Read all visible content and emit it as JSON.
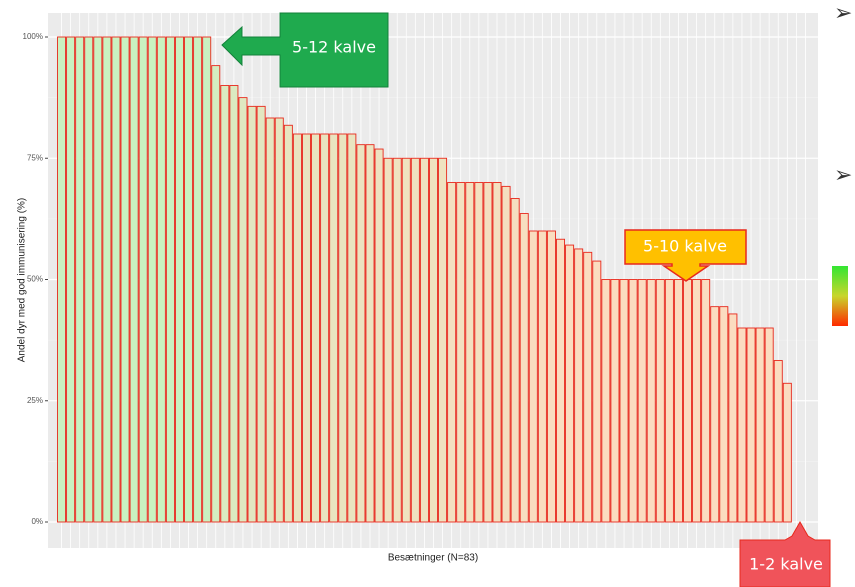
{
  "chart_data": {
    "type": "bar",
    "y_label": "Andel dyr med god immunisering (%)",
    "x_label": "Besætninger (N=83)",
    "categories": [
      null,
      null,
      null,
      null,
      null,
      null,
      null,
      null,
      null,
      null,
      null,
      null,
      null,
      null,
      null,
      null,
      null,
      null,
      null,
      null,
      null,
      null,
      null,
      null,
      null,
      null,
      null,
      null,
      null,
      null,
      null,
      null,
      null,
      null,
      null,
      null,
      null,
      null,
      null,
      null,
      null,
      null,
      null,
      null,
      null,
      null,
      null,
      null,
      null,
      null,
      null,
      null,
      null,
      null,
      null,
      null,
      null,
      null,
      null,
      null,
      null,
      null,
      null,
      null,
      null,
      null,
      null,
      null,
      null,
      null,
      null,
      null,
      null,
      null,
      null,
      null,
      null,
      null,
      null,
      null,
      null,
      null,
      null
    ],
    "values": [
      100,
      100,
      100,
      100,
      100,
      100,
      100,
      100,
      100,
      100,
      100,
      100,
      100,
      100,
      100,
      100,
      100,
      94.1,
      90,
      90,
      87.5,
      85.7,
      85.7,
      83.3,
      83.3,
      81.8,
      80,
      80,
      80,
      80,
      80,
      80,
      80,
      77.8,
      77.8,
      76.9,
      75,
      75,
      75,
      75,
      75,
      75,
      75,
      70,
      70,
      70,
      70,
      70,
      70,
      69.2,
      66.7,
      63.6,
      60,
      60,
      60,
      58.3,
      57.1,
      56.3,
      55.6,
      53.8,
      50,
      50,
      50,
      50,
      50,
      50,
      50,
      50,
      50,
      50,
      50,
      50,
      44.4,
      44.4,
      42.9,
      40,
      40,
      40,
      40,
      33.3,
      28.6,
      0,
      0
    ],
    "fill_high": "#c9f2c1",
    "fill_low": "#fbdcc0",
    "stroke": "#e8281c",
    "ylim": [
      0,
      100
    ],
    "yticks": [
      {
        "value": 0,
        "label": "0%"
      },
      {
        "value": 25,
        "label": "25%"
      },
      {
        "value": 50,
        "label": "50%"
      },
      {
        "value": 75,
        "label": "75%"
      },
      {
        "value": 100,
        "label": "100%"
      }
    ],
    "grid": true,
    "annotations": [
      "5-12 kalve",
      "5-10 kalve",
      "1-2 kalve"
    ]
  }
}
